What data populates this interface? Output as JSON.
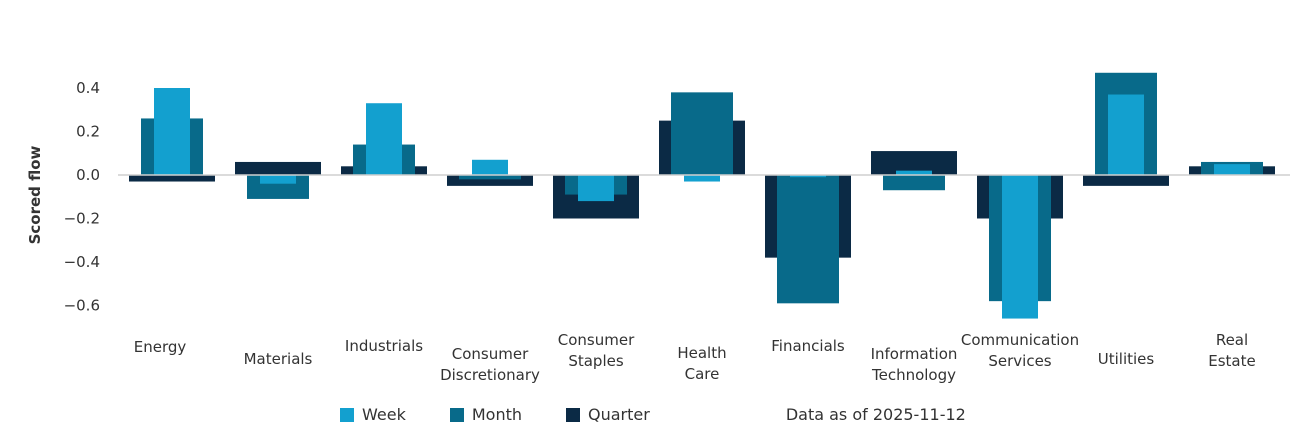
{
  "chart_data": {
    "type": "bar",
    "ylabel": "Scored flow",
    "ylim": [
      -0.7,
      0.5
    ],
    "yticks": [
      0.4,
      0.2,
      0.0,
      -0.2,
      -0.4,
      -0.6
    ],
    "ytick_labels": [
      "0.4",
      "0.2",
      "0.0",
      "−0.2",
      "−0.4",
      "−0.6"
    ],
    "categories": [
      "Energy",
      "Materials",
      "Industrials",
      "Consumer Discretionary",
      "Consumer Staples",
      "Health Care",
      "Financials",
      "Information Technology",
      "Communication Services",
      "Utilities",
      "Real Estate"
    ],
    "category_lines": [
      [
        "Energy"
      ],
      [
        "Materials"
      ],
      [
        "Industrials"
      ],
      [
        "Consumer",
        "Discretionary"
      ],
      [
        "Consumer",
        "Staples"
      ],
      [
        "Health",
        "Care"
      ],
      [
        "Financials"
      ],
      [
        "Information",
        "Technology"
      ],
      [
        "Communication",
        "Services"
      ],
      [
        "Utilities"
      ],
      [
        "Real",
        "Estate"
      ]
    ],
    "series": [
      {
        "name": "Quarter",
        "color": "#0b2a45",
        "values": [
          -0.03,
          0.06,
          0.04,
          -0.05,
          -0.2,
          0.25,
          -0.38,
          0.11,
          -0.2,
          -0.05,
          0.04
        ]
      },
      {
        "name": "Month",
        "color": "#086a8a",
        "values": [
          0.26,
          -0.11,
          0.14,
          -0.02,
          -0.09,
          0.38,
          -0.59,
          -0.07,
          -0.58,
          0.47,
          0.06
        ]
      },
      {
        "name": "Week",
        "color": "#13a0cf",
        "values": [
          0.4,
          -0.04,
          0.33,
          0.07,
          -0.12,
          -0.03,
          -0.01,
          0.02,
          -0.66,
          0.37,
          0.05
        ]
      }
    ]
  },
  "legend": {
    "items": [
      {
        "label": "Week",
        "color": "#13a0cf"
      },
      {
        "label": "Month",
        "color": "#086a8a"
      },
      {
        "label": "Quarter",
        "color": "#0b2a45"
      }
    ],
    "as_of": "Data as of 2025-11-12"
  }
}
